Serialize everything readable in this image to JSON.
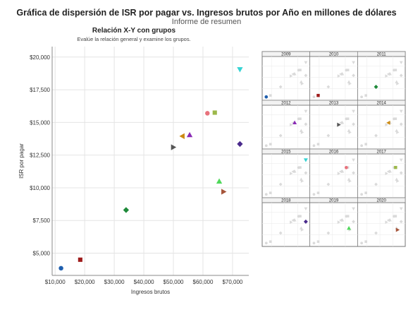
{
  "header": {
    "title": "Gráfica de dispersión de ISR por pagar vs. Ingresos brutos por Año en millones de dólares",
    "subtitle": "Informe de resumen"
  },
  "panel": {
    "title": "Relación X-Y con grupos",
    "description": "Evalúe la relación general y examine los grupos."
  },
  "chart_data": {
    "type": "scatter",
    "title": "Relación X-Y con grupos",
    "xlabel": "Ingresos brutos",
    "ylabel": "ISR por pagar",
    "xlim": [
      9000,
      75500
    ],
    "ylim": [
      3300,
      20800
    ],
    "x_ticks": [
      10000,
      20000,
      30000,
      40000,
      50000,
      60000,
      70000
    ],
    "x_tick_labels": [
      "$10,000",
      "$20,000",
      "$30,000",
      "$40,000",
      "$50,000",
      "$60,000",
      "$70,000"
    ],
    "y_ticks": [
      5000,
      7500,
      10000,
      12500,
      15000,
      17500,
      20000
    ],
    "y_tick_labels": [
      "$5,000",
      "$7,500",
      "$10,000",
      "$12,500",
      "$15,000",
      "$17,500",
      "$20,000"
    ],
    "grid": true,
    "series": [
      {
        "name": "2009",
        "x": 12000,
        "y": 3850,
        "color": "#1f5fae",
        "marker": "circle"
      },
      {
        "name": "2010",
        "x": 18500,
        "y": 4500,
        "color": "#9e1b1b",
        "marker": "square"
      },
      {
        "name": "2011",
        "x": 34000,
        "y": 8300,
        "color": "#1f8a3a",
        "marker": "diamond"
      },
      {
        "name": "2012",
        "x": 55500,
        "y": 14050,
        "color": "#8a2cb5",
        "marker": "triangle-up"
      },
      {
        "name": "2013",
        "x": 50000,
        "y": 13100,
        "color": "#555555",
        "marker": "triangle-right"
      },
      {
        "name": "2014",
        "x": 53000,
        "y": 13950,
        "color": "#cc8a12",
        "marker": "triangle-left"
      },
      {
        "name": "2015",
        "x": 72500,
        "y": 19050,
        "color": "#35d3d3",
        "marker": "triangle-down"
      },
      {
        "name": "2016",
        "x": 61500,
        "y": 15700,
        "color": "#e8727c",
        "marker": "circle"
      },
      {
        "name": "2017",
        "x": 64000,
        "y": 15750,
        "color": "#9cb84a",
        "marker": "square"
      },
      {
        "name": "2018",
        "x": 72500,
        "y": 13350,
        "color": "#4a2a8c",
        "marker": "diamond"
      },
      {
        "name": "2019",
        "x": 65500,
        "y": 10500,
        "color": "#4fd85a",
        "marker": "triangle-up"
      },
      {
        "name": "2020",
        "x": 67000,
        "y": 9700,
        "color": "#a6553a",
        "marker": "triangle-right"
      }
    ]
  }
}
